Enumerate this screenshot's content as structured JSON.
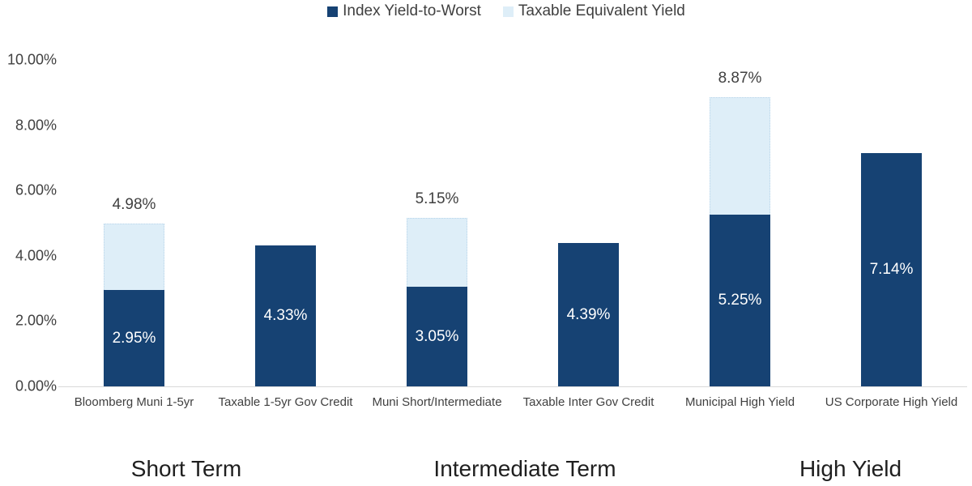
{
  "legend": {
    "items": [
      {
        "label": "Index Yield-to-Worst",
        "color": "#164273"
      },
      {
        "label": "Taxable Equivalent Yield",
        "color": "#DEEEF8"
      }
    ]
  },
  "chart_data": {
    "type": "bar",
    "subtype": "stacked",
    "title": "",
    "xlabel": "",
    "ylabel": "",
    "grid": false,
    "legend_position": "top",
    "categories": [
      "Bloomberg Muni 1-5yr",
      "Taxable 1-5yr Gov Credit",
      "Muni Short/Intermediate",
      "Taxable Inter Gov Credit",
      "Municipal High Yield",
      "US Corporate High Yield"
    ],
    "series": [
      {
        "name": "Index Yield-to-Worst",
        "color": "#164273",
        "values": [
          2.95,
          4.33,
          3.05,
          4.39,
          5.25,
          7.14
        ],
        "labels": [
          "2.95%",
          "4.33%",
          "3.05%",
          "4.39%",
          "5.25%",
          "7.14%"
        ]
      },
      {
        "name": "Taxable Equivalent Yield",
        "color": "#DEEEF8",
        "values": [
          2.03,
          0,
          2.1,
          0,
          3.62,
          0
        ]
      }
    ],
    "totals": [
      {
        "index": 0,
        "value": 4.98,
        "label": "4.98%"
      },
      {
        "index": 2,
        "value": 5.15,
        "label": "5.15%"
      },
      {
        "index": 4,
        "value": 8.87,
        "label": "8.87%"
      }
    ],
    "y_axis": {
      "min": 0,
      "max": 10,
      "ticks": [
        {
          "value": 0,
          "label": "0.00%"
        },
        {
          "value": 2,
          "label": "2.00%"
        },
        {
          "value": 4,
          "label": "4.00%"
        },
        {
          "value": 6,
          "label": "6.00%"
        },
        {
          "value": 8,
          "label": "8.00%"
        },
        {
          "value": 10,
          "label": "10.00%"
        }
      ]
    },
    "groups": [
      {
        "label": "Short Term"
      },
      {
        "label": "Intermediate Term"
      },
      {
        "label": "High Yield"
      }
    ]
  }
}
